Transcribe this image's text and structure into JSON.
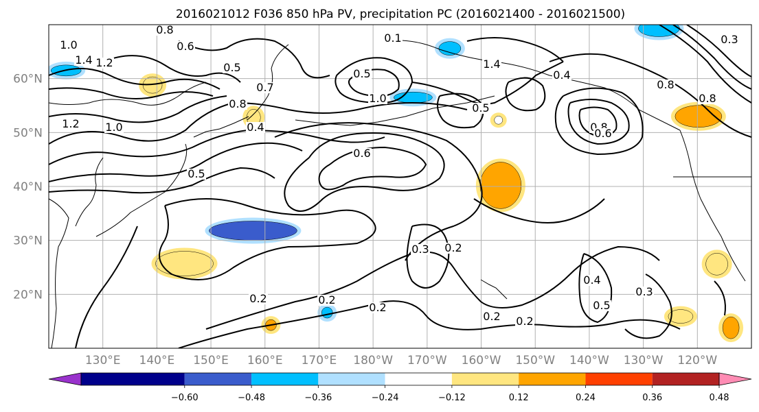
{
  "chart_data": {
    "type": "contour-map",
    "title": "2016021012 F036 850 hPa PV, precipitation PC (2016021400 - 2016021500)",
    "lon_ticks": [
      "130°E",
      "140°E",
      "150°E",
      "160°E",
      "170°E",
      "180°W",
      "170°W",
      "160°W",
      "150°W",
      "140°W",
      "130°W",
      "120°W"
    ],
    "lat_ticks": [
      "20°N",
      "30°N",
      "40°N",
      "50°N",
      "60°N"
    ],
    "lon_range": [
      120,
      250
    ],
    "lat_range": [
      10,
      70
    ],
    "grid": true,
    "colorbar": {
      "orientation": "horizontal",
      "extend": "both",
      "levels": [
        -0.72,
        -0.6,
        -0.48,
        -0.36,
        -0.24,
        -0.12,
        0.12,
        0.24,
        0.36,
        0.48,
        0.6,
        0.72
      ],
      "tick_labels": [
        "-0.60",
        "-0.48",
        "-0.36",
        "-0.24",
        "-0.12",
        "0.12",
        "0.24",
        "0.36",
        "0.48",
        "0.60"
      ],
      "colors": [
        "#9932cc",
        "#00008b",
        "#3a5ccc",
        "#00bfff",
        "#b0e0ff",
        "#ffffff",
        "#ffe680",
        "#ffa500",
        "#ff4000",
        "#b22222",
        "#ff8cb4"
      ]
    },
    "contour_labels": [
      "1.0",
      "1.4",
      "1.2",
      "0.6",
      "0.8",
      "0.5",
      "0.7",
      "0.4",
      "1.2",
      "1.0",
      "0.5",
      "0.6",
      "0.3",
      "0.2",
      "0.2",
      "0.2",
      "0.2",
      "0.2",
      "0.2",
      "0.3",
      "0.5",
      "0.4",
      "0.8",
      "0.6",
      "0.5",
      "1.0",
      "0.5",
      "1.4",
      "0.4",
      "0.8",
      "0.8",
      "0.3",
      "0.6",
      "0.8",
      "0.1"
    ],
    "precip_regions": [
      {
        "lon": 157.8,
        "lat": 31.8,
        "level": "-0.36"
      },
      {
        "lon": 145.1,
        "lat": 25.7,
        "level": "0.24"
      },
      {
        "lon": 203.6,
        "lat": 40.2,
        "level": "0.36"
      },
      {
        "lon": 240.2,
        "lat": 53.0,
        "level": "0.36"
      },
      {
        "lon": 246.2,
        "lat": 13.8,
        "level": "0.36"
      },
      {
        "lon": 243.6,
        "lat": 25.6,
        "level": "0.24"
      },
      {
        "lon": 236.9,
        "lat": 15.9,
        "level": "0.24"
      },
      {
        "lon": 139.2,
        "lat": 58.8,
        "level": "0.24"
      },
      {
        "lon": 123.2,
        "lat": 61.5,
        "level": "-0.24"
      },
      {
        "lon": 187.4,
        "lat": 56.5,
        "level": "-0.24"
      },
      {
        "lon": 194.2,
        "lat": 65.6,
        "level": "-0.24"
      },
      {
        "lon": 157.9,
        "lat": 52.8,
        "level": "0.24"
      },
      {
        "lon": 161.1,
        "lat": 14.3,
        "level": "0.36"
      },
      {
        "lon": 232.9,
        "lat": 69.3,
        "level": "-0.24"
      },
      {
        "lon": 203.2,
        "lat": 52.3,
        "level": "0.12"
      },
      {
        "lon": 171.5,
        "lat": 16.6,
        "level": "-0.24"
      }
    ]
  }
}
